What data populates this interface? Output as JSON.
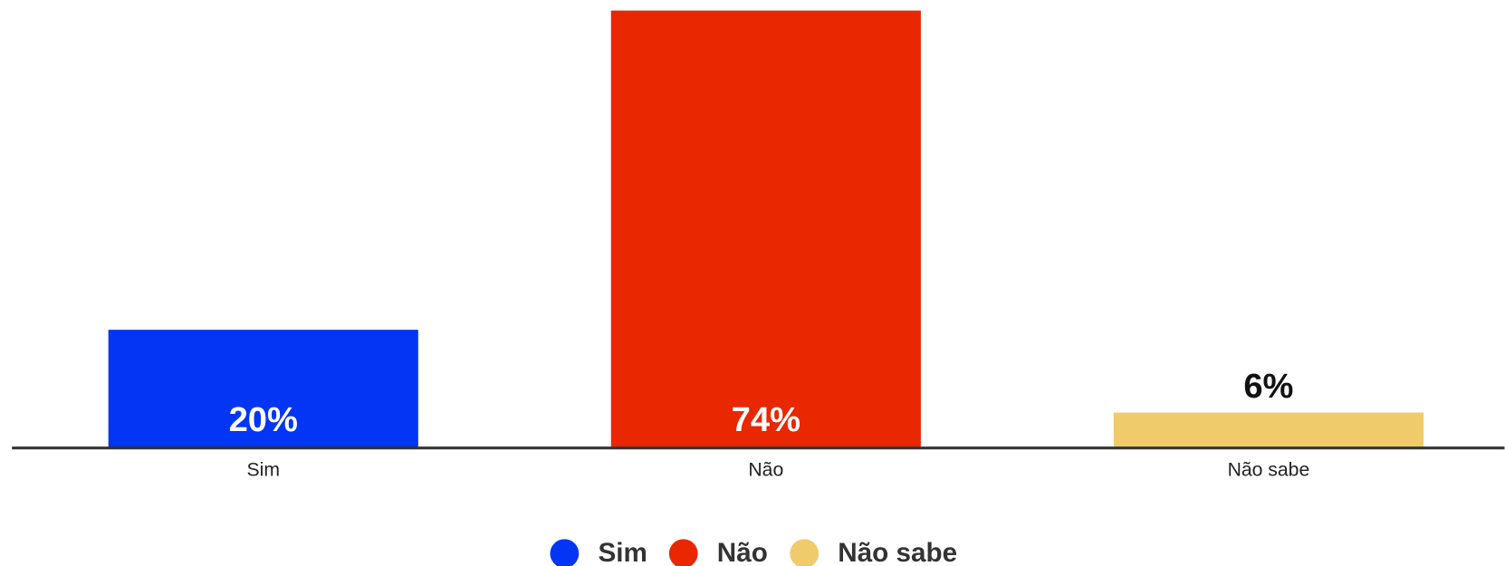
{
  "chart_data": {
    "type": "bar",
    "categories": [
      "Sim",
      "Não",
      "Não sabe"
    ],
    "values": [
      20,
      74,
      6
    ],
    "value_labels": [
      "20%",
      "74%",
      "6%"
    ],
    "colors": [
      "#0335f5",
      "#e92700",
      "#efcb6c"
    ]
  }
}
